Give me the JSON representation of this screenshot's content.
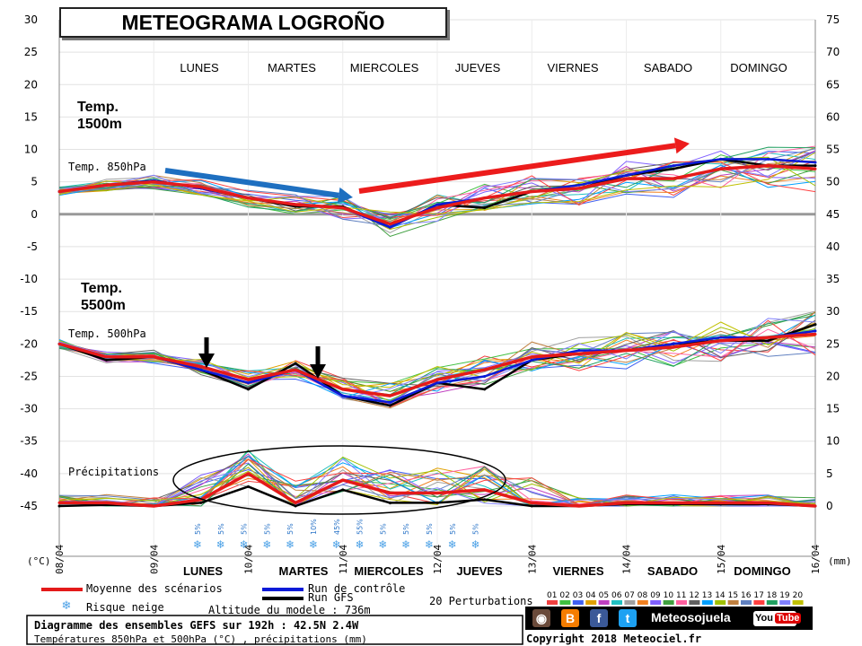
{
  "title": "METEOGRAMA LOGROÑO",
  "days_top": [
    "LUNES",
    "MARTES",
    "MIERCOLES",
    "JUEVES",
    "VIERNES",
    "SABADO",
    "DOMINGO"
  ],
  "days_bottom": [
    "LUNES",
    "MARTES",
    "MIERCOLES",
    "JUEVES",
    "VIERNES",
    "SABADO",
    "DOMINGO"
  ],
  "annotations": {
    "temp1500": [
      "Temp.",
      "1500m"
    ],
    "temp5500": [
      "Temp.",
      "5500m"
    ],
    "label_850": "Temp. 850hPa",
    "label_500": "Temp. 500hPa",
    "label_precip": "Précipitations"
  },
  "axis": {
    "left_unit": "(°C)",
    "right_unit": "(mm)",
    "left_ticks": [
      30,
      25,
      20,
      15,
      10,
      5,
      0,
      -5,
      -10,
      -15,
      -20,
      -25,
      -30,
      -35,
      -40,
      -45
    ],
    "right_ticks": [
      75,
      70,
      65,
      60,
      55,
      50,
      45,
      40,
      35,
      30,
      25,
      20,
      15,
      10,
      5,
      0
    ],
    "dates": [
      "08/04",
      "09/04",
      "10/04",
      "11/04",
      "12/04",
      "13/04",
      "14/04",
      "15/04",
      "16/04"
    ]
  },
  "legend": {
    "mean": "Moyenne des scénarios",
    "snow": "Risque neige",
    "control": "Run de contrôle",
    "gfs": "Run GFS",
    "altitude": "Altitude du modele : 736m",
    "perturbations": "20 Perturbations",
    "pert_numbers": [
      "01",
      "02",
      "03",
      "04",
      "05",
      "06",
      "07",
      "08",
      "09",
      "10",
      "11",
      "12",
      "13",
      "14",
      "15",
      "16",
      "17",
      "18",
      "19",
      "20"
    ]
  },
  "snow_risk": [
    "5%",
    "5%",
    "5%",
    "5%",
    "5%",
    "10%",
    "45%",
    "55%",
    "5%",
    "5%",
    "5%",
    "5%",
    "5%"
  ],
  "footer": {
    "line1": "Diagramme des ensembles GEFS sur 192h : 42.5N 2.4W",
    "line2": "Températures 850hPa et 500hPa (°C) , précipitations (mm)",
    "copyright": "Copyright 2018 Meteociel.fr",
    "brand": "Meteosojuela",
    "youtube": "You",
    "youtube2": "Tube"
  },
  "colors": {
    "mean": "#e41a1a",
    "control": "#0a1ad8",
    "gfs": "#000000",
    "blue_arrow": "#1e6fc0",
    "red_arrow": "#ec1c1c",
    "perturbations": [
      "#f04040",
      "#40c040",
      "#4060f0",
      "#e0a000",
      "#c040c0",
      "#20c0c0",
      "#a0a0a0",
      "#f08020",
      "#8060ff",
      "#40a040",
      "#ff60a0",
      "#606060",
      "#00a0ff",
      "#a0c000",
      "#c08040",
      "#6080c0",
      "#ff4040",
      "#20a060",
      "#8080ff",
      "#c0c000"
    ]
  },
  "chart_data": {
    "type": "line",
    "x": [
      "08/04 00h",
      "08/04 12h",
      "09/04 00h",
      "09/04 12h",
      "10/04 00h",
      "10/04 12h",
      "11/04 00h",
      "11/04 12h",
      "12/04 00h",
      "12/04 12h",
      "13/04 00h",
      "13/04 12h",
      "14/04 00h",
      "14/04 12h",
      "15/04 00h",
      "15/04 12h",
      "16/04 00h"
    ],
    "series_t850": [
      {
        "name": "Moyenne des scénarios",
        "values": [
          3.5,
          4.5,
          5,
          4.2,
          2.5,
          1.5,
          1,
          -1.5,
          1,
          2.5,
          3.5,
          4,
          5.5,
          5.5,
          7,
          7.5,
          7
        ]
      },
      {
        "name": "Run de contrôle",
        "values": [
          3.5,
          4.5,
          5.2,
          4,
          2.5,
          1.5,
          1,
          -2,
          1.5,
          2.5,
          3.5,
          4.5,
          6,
          7.5,
          8.5,
          8.5,
          8
        ]
      },
      {
        "name": "Run GFS",
        "values": [
          3.5,
          4.5,
          5.2,
          4,
          2.5,
          1.2,
          1.2,
          -2,
          1.5,
          1,
          3.5,
          4,
          6,
          7,
          8.5,
          7.5,
          7.5
        ]
      }
    ],
    "series_t500": [
      {
        "name": "Moyenne des scénarios",
        "values": [
          -20,
          -22,
          -22,
          -23.5,
          -25.5,
          -24,
          -27,
          -28,
          -25.5,
          -24,
          -22,
          -21.5,
          -21,
          -20.5,
          -19.5,
          -19,
          -18.5
        ]
      },
      {
        "name": "Run de contrôle",
        "values": [
          -20,
          -22,
          -22,
          -24,
          -26,
          -24,
          -28,
          -29,
          -26,
          -25,
          -22.5,
          -21,
          -21,
          -20,
          -19,
          -19,
          -18
        ]
      },
      {
        "name": "Run GFS",
        "values": [
          -20,
          -22.5,
          -22,
          -24,
          -27,
          -23,
          -28,
          -29.5,
          -26,
          -27,
          -22.5,
          -21.5,
          -21,
          -20,
          -19.5,
          -19.5,
          -17
        ]
      }
    ],
    "series_precip": [
      {
        "name": "Moyenne des scénarios",
        "values": [
          0.5,
          0.5,
          0,
          1,
          5,
          0.5,
          4,
          2,
          2,
          2.5,
          0.5,
          0,
          0.5,
          0.5,
          0.5,
          0.5,
          0
        ]
      },
      {
        "name": "Run GFS",
        "values": [
          0,
          0.2,
          0,
          0.5,
          3,
          0,
          2.5,
          0.5,
          0.5,
          1,
          0,
          0,
          0.3,
          0.3,
          0.3,
          0.3,
          0
        ]
      }
    ],
    "ylim_temp": [
      -45,
      30
    ],
    "ylim_precip_mm": [
      0,
      75
    ],
    "grid": true
  }
}
